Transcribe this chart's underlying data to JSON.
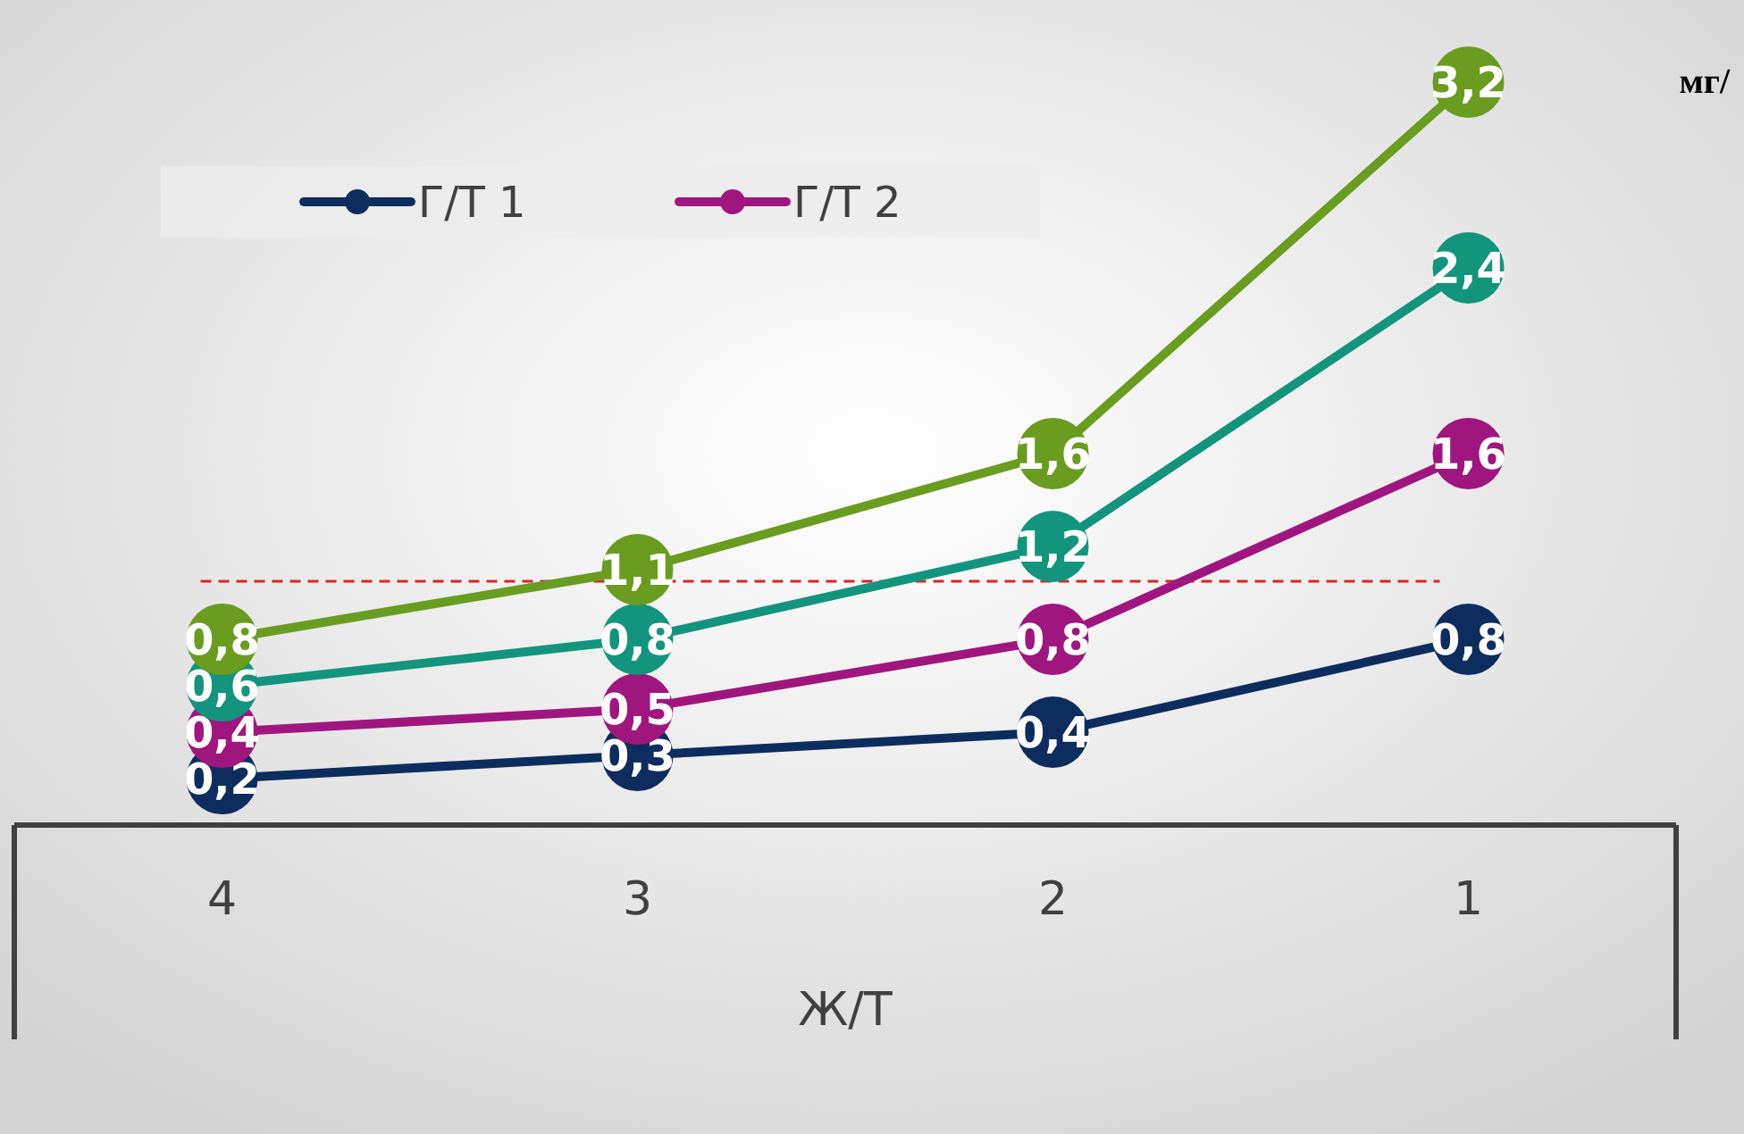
{
  "chart_data": {
    "type": "line",
    "xlabel": "Ж/Т",
    "annotations": [
      "мг/"
    ],
    "categories": [
      "4",
      "3",
      "2",
      "1"
    ],
    "series": [
      {
        "name": "Г/Т 1",
        "color": "#0d2d5e",
        "values": [
          0.2,
          0.3,
          0.4,
          0.8
        ],
        "value_labels": [
          "0,2",
          "0,3",
          "0,4",
          "0,8"
        ]
      },
      {
        "name": "Г/Т 2",
        "color": "#a0167f",
        "values": [
          0.4,
          0.5,
          0.8,
          1.6
        ],
        "value_labels": [
          "0,4",
          "0,5",
          "0,8",
          "1,6"
        ]
      },
      {
        "color": "#13957d",
        "values": [
          0.6,
          0.8,
          1.2,
          2.4
        ],
        "value_labels": [
          "0,6",
          "0,8",
          "1,2",
          "2,4"
        ]
      },
      {
        "color": "#6a9c1f",
        "values": [
          0.8,
          1.1,
          1.6,
          3.2
        ],
        "value_labels": [
          "0,8",
          "1,1",
          "1,6",
          "3,2"
        ]
      }
    ],
    "tick_labels": "x",
    "legend": "top left",
    "marker": "circle",
    "line_style": "solid",
    "ref_lines": [
      {
        "axis": "y",
        "value": 1.05,
        "color": "#d62728",
        "line_style": "dashed"
      }
    ]
  }
}
